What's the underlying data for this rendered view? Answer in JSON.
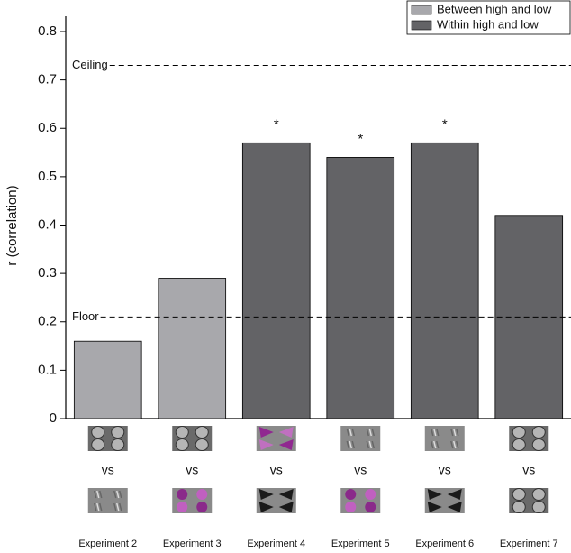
{
  "chart_data": {
    "type": "bar",
    "y_label": "r (correlation)",
    "categories": [
      "Experiment 2",
      "Experiment 3",
      "Experiment 4",
      "Experiment 5",
      "Experiment 6",
      "Experiment 7"
    ],
    "series": [
      {
        "name": "Between high and low",
        "color": "#a8a8ac",
        "values": [
          0.16,
          0.29,
          null,
          null,
          null,
          null
        ]
      },
      {
        "name": "Within high and low",
        "color": "#636366",
        "values": [
          null,
          null,
          0.57,
          0.54,
          0.57,
          0.42
        ]
      }
    ],
    "markers": [
      null,
      null,
      "*",
      "*",
      "*",
      null
    ],
    "reference_lines": [
      {
        "label": "Ceiling",
        "value": 0.73
      },
      {
        "label": "Floor",
        "value": 0.21
      }
    ],
    "comparison_label": "vs",
    "ylim": [
      0,
      0.8
    ],
    "yticks": [
      0,
      0.1,
      0.2,
      0.3,
      0.4,
      0.5,
      0.6,
      0.7,
      0.8
    ],
    "legend": "top-right"
  }
}
